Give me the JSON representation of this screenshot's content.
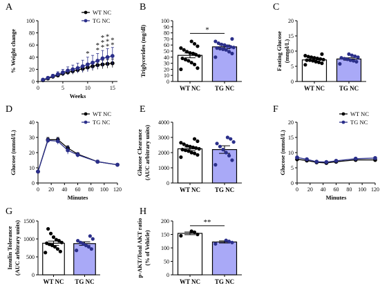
{
  "chart_data": [
    {
      "panel": "A",
      "type": "line",
      "xlabel": "Weeks",
      "ylabel": "% Weight change",
      "xlim": [
        0,
        16
      ],
      "ylim": [
        0,
        100
      ],
      "xticks": [
        0,
        5,
        10,
        15
      ],
      "yticks": [
        0,
        20,
        40,
        60,
        80,
        100
      ],
      "legend": "top-right",
      "series": [
        {
          "name": "WT NC",
          "color": "#000000",
          "x": [
            1,
            2,
            3,
            4,
            5,
            6,
            7,
            8,
            9,
            10,
            11,
            12,
            13,
            14,
            15
          ],
          "values": [
            2,
            5,
            8,
            10,
            13,
            15,
            17,
            19,
            21,
            23,
            25,
            27,
            28,
            29,
            30
          ],
          "err": [
            1,
            2,
            2,
            3,
            4,
            4,
            5,
            5,
            6,
            6,
            7,
            7,
            7,
            7,
            7
          ]
        },
        {
          "name": "TG NC",
          "color": "#2b2f8a",
          "x": [
            1,
            2,
            3,
            4,
            5,
            6,
            7,
            8,
            9,
            10,
            11,
            12,
            13,
            14,
            15
          ],
          "values": [
            3,
            6,
            9,
            12,
            15,
            18,
            20,
            22,
            25,
            28,
            31,
            34,
            38,
            40,
            42
          ],
          "err": [
            1,
            2,
            3,
            4,
            5,
            6,
            7,
            8,
            10,
            12,
            12,
            12,
            13,
            14,
            14
          ]
        }
      ],
      "annotations": [
        {
          "x": 10,
          "text": "*",
          "rows": 1
        },
        {
          "x": 12,
          "text": "*",
          "rows": 2
        },
        {
          "x": 13,
          "text": "*",
          "rows": 3
        },
        {
          "x": 14,
          "text": "*",
          "rows": 3
        },
        {
          "x": 15,
          "text": "*",
          "rows": 2
        }
      ]
    },
    {
      "panel": "B",
      "type": "bar",
      "xlabel": "",
      "ylabel": "Triglycerides (mg/dl)",
      "ylim": [
        0,
        100
      ],
      "yticks": [
        0,
        10,
        20,
        30,
        40,
        50,
        60,
        70,
        80,
        90,
        100
      ],
      "categories": [
        "WT NC",
        "TG NC"
      ],
      "values": [
        43,
        57
      ],
      "err": [
        4,
        3
      ],
      "colors": [
        "#ffffff",
        "#a9a9f7"
      ],
      "points": [
        [
          20,
          22,
          28,
          31,
          34,
          36,
          38,
          42,
          44,
          46,
          47,
          49,
          52,
          55,
          58,
          62,
          66
        ],
        [
          40,
          46,
          49,
          52,
          53,
          54,
          55,
          56,
          57,
          58,
          60,
          61,
          63,
          66,
          70
        ]
      ],
      "significance": "*"
    },
    {
      "panel": "C",
      "type": "bar",
      "xlabel": "",
      "ylabel": "Fasting Glucose (mmol/L)",
      "ylim": [
        0,
        20
      ],
      "yticks": [
        0,
        5,
        10,
        15,
        20
      ],
      "categories": [
        "WT NC",
        "TG NC"
      ],
      "values": [
        7.1,
        7.4
      ],
      "err": [
        0.4,
        0.4
      ],
      "colors": [
        "#ffffff",
        "#a9a9f7"
      ],
      "points": [
        [
          5.5,
          6.0,
          6.3,
          6.5,
          6.8,
          7.0,
          7.0,
          7.2,
          7.4,
          7.6,
          7.8,
          8.0,
          8.2,
          8.5,
          9.0
        ],
        [
          5.8,
          6.5,
          6.8,
          7.0,
          7.3,
          7.5,
          7.8,
          8.0,
          8.3,
          8.6,
          9.0
        ]
      ]
    },
    {
      "panel": "D",
      "type": "line",
      "xlabel": "Minutes",
      "ylabel": "Glucose (mmol/L)",
      "xlim": [
        0,
        120
      ],
      "ylim": [
        0,
        40
      ],
      "xticks": [
        0,
        20,
        40,
        60,
        80,
        100,
        120
      ],
      "yticks": [
        0,
        10,
        20,
        30,
        40
      ],
      "legend": "top-right",
      "series": [
        {
          "name": "WT NC",
          "color": "#000000",
          "x": [
            0,
            15,
            30,
            45,
            60,
            90,
            120
          ],
          "values": [
            7.5,
            28.5,
            28.5,
            23,
            19,
            14,
            12
          ],
          "err": [
            0.5,
            1.5,
            1.5,
            1.5,
            1,
            1,
            0.5
          ]
        },
        {
          "name": "TG NC",
          "color": "#2b2f8a",
          "x": [
            0,
            15,
            30,
            45,
            60,
            90,
            120
          ],
          "values": [
            7.5,
            28,
            27.5,
            21.5,
            18.5,
            14,
            12
          ],
          "err": [
            0.5,
            1.5,
            2,
            2.5,
            1.5,
            1,
            0.5
          ]
        }
      ]
    },
    {
      "panel": "E",
      "type": "bar",
      "xlabel": "",
      "ylabel": "Glucose Clearance (AUC arbitrary units)",
      "ylim": [
        0,
        4000
      ],
      "yticks": [
        0,
        1000,
        2000,
        3000,
        4000
      ],
      "categories": [
        "WT NC",
        "TG NC"
      ],
      "values": [
        2250,
        2200
      ],
      "err": [
        120,
        250
      ],
      "colors": [
        "#ffffff",
        "#a9a9f7"
      ],
      "points": [
        [
          1700,
          1850,
          1950,
          2000,
          2100,
          2150,
          2200,
          2250,
          2300,
          2350,
          2400,
          2450,
          2550,
          2650,
          2750,
          2900
        ],
        [
          1200,
          1500,
          1800,
          2000,
          2200,
          2400,
          2600,
          2700,
          2900,
          3000
        ]
      ]
    },
    {
      "panel": "F",
      "type": "line",
      "xlabel": "Minutes",
      "ylabel": "Glucose (mmol/L)",
      "xlim": [
        0,
        120
      ],
      "ylim": [
        0,
        20
      ],
      "xticks": [
        0,
        20,
        40,
        60,
        80,
        100,
        120
      ],
      "yticks": [
        0,
        5,
        10,
        15,
        20
      ],
      "legend": "top-right",
      "series": [
        {
          "name": "WT NC",
          "color": "#000000",
          "x": [
            0,
            15,
            30,
            45,
            60,
            90,
            120
          ],
          "values": [
            7.8,
            7.4,
            6.8,
            6.6,
            7.0,
            7.6,
            7.6
          ],
          "err": [
            0.4,
            0.4,
            0.4,
            0.4,
            0.4,
            0.4,
            0.4
          ]
        },
        {
          "name": "TG NC",
          "color": "#2b2f8a",
          "x": [
            0,
            15,
            30,
            45,
            60,
            90,
            120
          ],
          "values": [
            8.4,
            7.8,
            7.0,
            6.9,
            7.3,
            8.0,
            8.2
          ],
          "err": [
            0.4,
            0.4,
            0.4,
            0.4,
            0.4,
            0.4,
            0.4
          ]
        }
      ]
    },
    {
      "panel": "G",
      "type": "bar",
      "xlabel": "",
      "ylabel": "Insulin Tolerance (AUC arbitrary units)",
      "ylim": [
        0,
        1500
      ],
      "yticks": [
        0,
        500,
        1000,
        1500
      ],
      "categories": [
        "WT NC",
        "TG NC"
      ],
      "values": [
        880,
        870
      ],
      "err": [
        60,
        50
      ],
      "colors": [
        "#ffffff",
        "#a9a9f7"
      ],
      "points": [
        [
          620,
          650,
          720,
          780,
          820,
          850,
          880,
          900,
          950,
          980,
          1050,
          1150,
          1280
        ],
        [
          680,
          720,
          780,
          820,
          860,
          900,
          950,
          1000,
          1080
        ]
      ]
    },
    {
      "panel": "H",
      "type": "bar",
      "xlabel": "",
      "ylabel": "p-AKT/Total AKT ratio (% of Vehicle)",
      "ylim": [
        0,
        200
      ],
      "yticks": [
        0,
        50,
        100,
        150,
        200
      ],
      "categories": [
        "WT NC",
        "TG NC"
      ],
      "values": [
        154,
        122
      ],
      "err": [
        5,
        4
      ],
      "colors": [
        "#ffffff",
        "#a9a9f7"
      ],
      "points": [
        [
          145,
          150,
          158,
          162
        ],
        [
          115,
          120,
          124,
          128
        ]
      ],
      "significance": "**"
    }
  ]
}
